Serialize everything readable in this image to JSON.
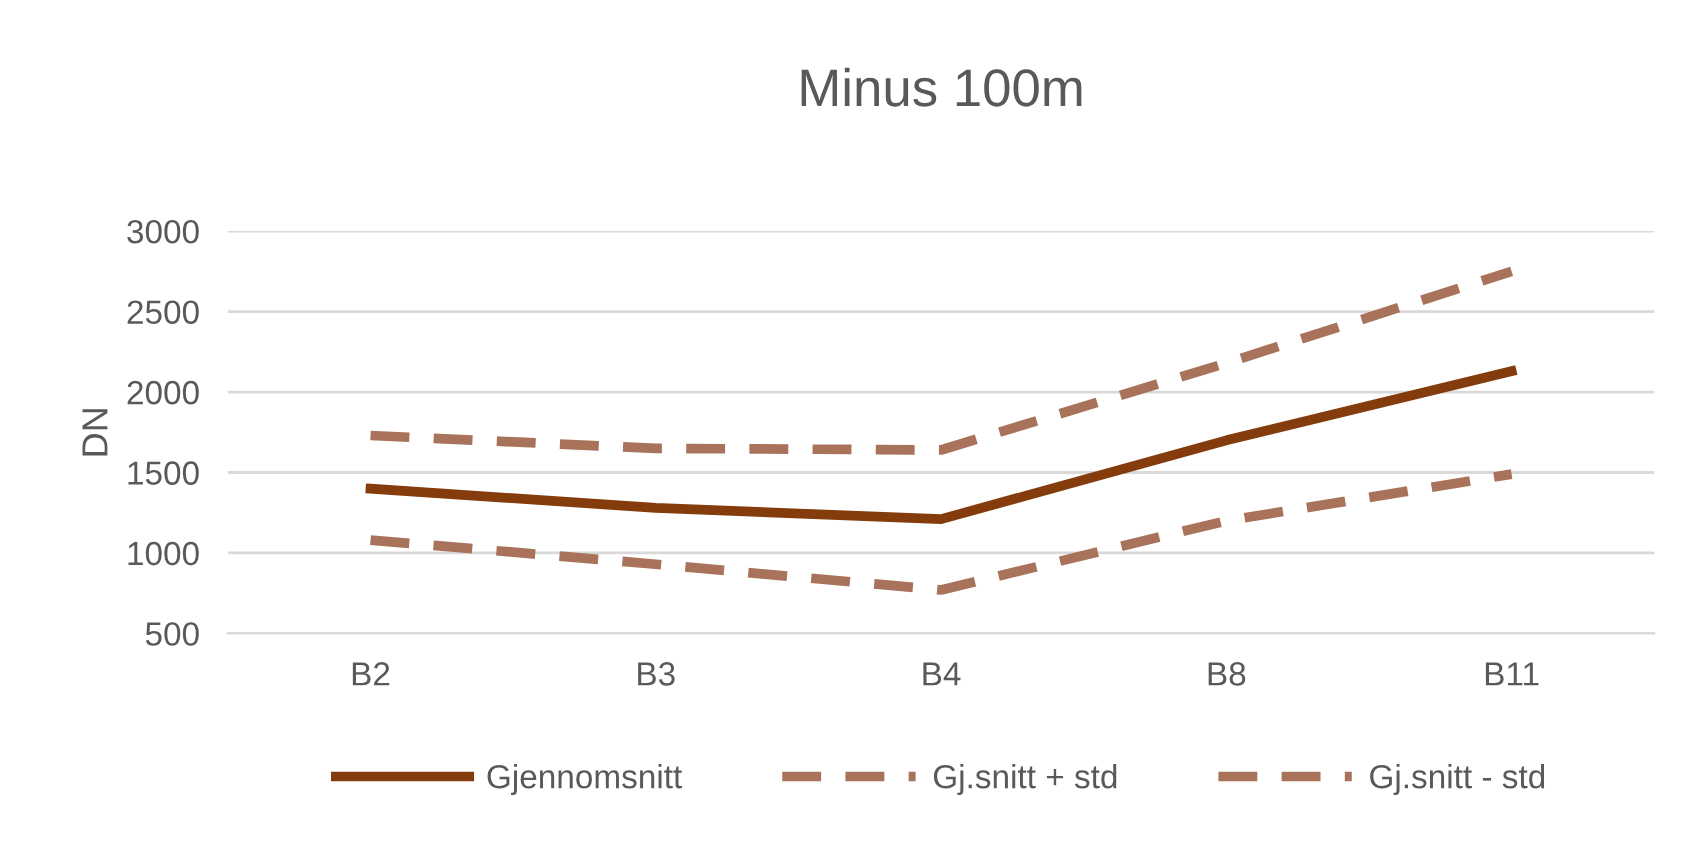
{
  "chart_data": {
    "type": "line",
    "title": "Minus 100m",
    "ylabel": "DN",
    "categories": [
      "B2",
      "B3",
      "B4",
      "B8",
      "B11"
    ],
    "series": [
      {
        "name": "Gjennomsnitt",
        "color": "#843c0c",
        "line_style": "solid",
        "values": [
          1400,
          1280,
          1210,
          1700,
          2130
        ]
      },
      {
        "name": "Gj.snitt + std",
        "color": "#a8735a",
        "line_style": "dashed",
        "values": [
          1730,
          1650,
          1640,
          2180,
          2750
        ]
      },
      {
        "name": "Gj.snitt - std",
        "color": "#a8735a",
        "line_style": "dashed",
        "values": [
          1080,
          930,
          770,
          1200,
          1490
        ]
      }
    ],
    "ylim": [
      500,
      3000
    ],
    "yticks": [
      500,
      1000,
      1500,
      2000,
      2500,
      3000
    ],
    "grid": "y",
    "legend": "bottom",
    "marker": "none"
  }
}
